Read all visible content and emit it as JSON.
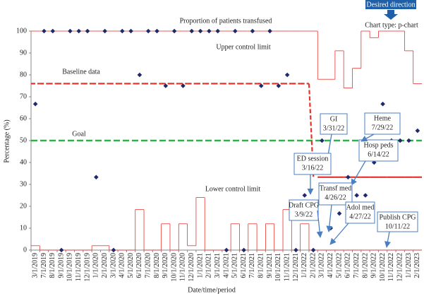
{
  "chart_data": {
    "type": "control",
    "title": "Proportion of patients transfused",
    "x_label": "Date/time/period",
    "y_label": "Percentage (%)",
    "categories": [
      "3/1/2019",
      "7/1/2019",
      "8/1/2019",
      "9/1/2019",
      "10/1/2019",
      "11/1/2019",
      "12/1/2019",
      "1/1/2020",
      "2/1/2020",
      "3/1/2020",
      "4/1/2020",
      "5/1/2020",
      "6/1/2020",
      "7/1/2020",
      "8/1/2020",
      "9/1/2020",
      "10/1/2020",
      "11/1/2020",
      "12/1/2020",
      "1/1/2021",
      "2/1/2021",
      "3/1/2021",
      "4/1/2021",
      "5/1/2021",
      "6/1/2021",
      "7/1/2021",
      "8/1/2021",
      "9/1/2021",
      "10/1/2021",
      "11/1/2021",
      "12/1/2021",
      "1/1/2022",
      "2/1/2022",
      "3/1/2022",
      "4/1/2022",
      "5/1/2022",
      "6/1/2022",
      "7/1/2022",
      "8/1/2022",
      "9/1/2022",
      "10/1/2022",
      "11/1/2022",
      "12/1/2022",
      "1/1/2023",
      "2/1/2023"
    ],
    "ylim": [
      0,
      100
    ],
    "yticks": [
      0,
      10,
      20,
      30,
      40,
      50,
      60,
      70,
      80,
      90,
      100
    ],
    "series": [
      {
        "name": "Upper control limit",
        "color": "#e8322b",
        "style": "step",
        "values": [
          100,
          100,
          100,
          100,
          100,
          100,
          100,
          100,
          100,
          100,
          100,
          100,
          100,
          100,
          100,
          100,
          100,
          100,
          100,
          100,
          100,
          100,
          100,
          100,
          100,
          100,
          100,
          100,
          100,
          100,
          100,
          100,
          100,
          78,
          78,
          91,
          74,
          83,
          100,
          97,
          100,
          100,
          100,
          91,
          76
        ]
      },
      {
        "name": "Lower control limit",
        "color": "#e8322b",
        "style": "step",
        "values": [
          2,
          0,
          0,
          0,
          0,
          0,
          0,
          2,
          2,
          0,
          0,
          0,
          18.5,
          0,
          0,
          12,
          0,
          12,
          2,
          24,
          0,
          0,
          0,
          12,
          0,
          12,
          0,
          12,
          0,
          18.5,
          0,
          12,
          0,
          0,
          0,
          0,
          0,
          0,
          0,
          0,
          0,
          0,
          0,
          0,
          0
        ]
      },
      {
        "name": "Baseline data",
        "color": "#e8322b",
        "style": "dashed",
        "values": [
          76,
          76,
          76,
          76,
          76,
          76,
          76,
          76,
          76,
          76,
          76,
          76,
          76,
          76,
          76,
          76,
          76,
          76,
          76,
          76,
          76,
          76,
          76,
          76,
          76,
          76,
          76,
          76,
          76,
          76,
          76,
          76,
          null,
          null,
          null,
          null,
          null,
          null,
          null,
          null,
          null,
          null,
          null,
          null,
          null
        ]
      },
      {
        "color": "#e8322b",
        "style": "solid",
        "values": [
          null,
          null,
          null,
          null,
          null,
          null,
          null,
          null,
          null,
          null,
          null,
          null,
          null,
          null,
          null,
          null,
          null,
          null,
          null,
          null,
          null,
          null,
          null,
          null,
          null,
          null,
          null,
          null,
          null,
          null,
          null,
          null,
          null,
          33.3,
          33.3,
          33.3,
          33.3,
          33.3,
          33.3,
          33.3,
          33.3,
          33.3,
          33.3,
          33.3,
          33.3
        ]
      },
      {
        "color": "#1f2a6b",
        "style": "markers",
        "values": [
          66.7,
          100,
          100,
          0,
          100,
          100,
          100,
          33.3,
          100,
          0,
          100,
          100,
          80,
          100,
          100,
          75,
          100,
          75,
          100,
          100,
          100,
          100,
          0,
          100,
          0,
          100,
          75,
          100,
          75,
          80,
          0,
          25,
          0,
          50,
          10,
          16.7,
          33.3,
          25,
          25,
          40,
          66.7,
          50,
          50,
          50,
          54.5
        ]
      }
    ],
    "goal": {
      "name": "Goal",
      "value": 50,
      "color": "#2ab34a"
    },
    "annotations": [
      {
        "lines": [
          "GI",
          "3/31/22"
        ]
      },
      {
        "lines": [
          "ED session",
          "3/16/22"
        ]
      },
      {
        "lines": [
          "Hosp peds",
          "6/14/22"
        ]
      },
      {
        "lines": [
          "Heme",
          "7/29/22"
        ]
      },
      {
        "lines": [
          "Transf med",
          "4/26/22"
        ]
      },
      {
        "lines": [
          "Draft CPG",
          "3/9/22"
        ]
      },
      {
        "lines": [
          "Adol med",
          "4/27/22"
        ]
      },
      {
        "lines": [
          "Publish CPG",
          "10/11/22"
        ]
      }
    ],
    "desired_direction": "Desired direction",
    "chart_type_note": "Chart type: p-chart"
  }
}
